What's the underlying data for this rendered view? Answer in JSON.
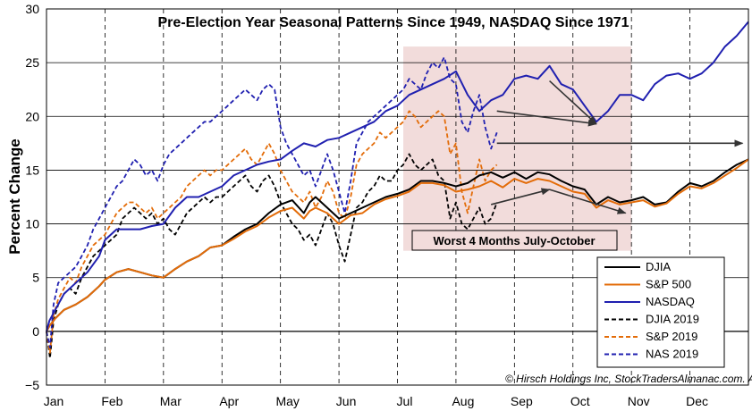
{
  "chart_data": {
    "type": "line",
    "title": "Pre-Election Year Seasonal Patterns Since 1949, NASDAQ Since 1971",
    "ylabel": "Percent Change",
    "xlabel": "",
    "ylim": [
      -5,
      30
    ],
    "yticks": [
      "−5",
      "0",
      "5",
      "10",
      "15",
      "20",
      "25",
      "30"
    ],
    "ytick_values": [
      -5,
      0,
      5,
      10,
      15,
      20,
      25,
      30
    ],
    "months": [
      "Jan",
      "Feb",
      "Mar",
      "Apr",
      "May",
      "Jun",
      "Jul",
      "Aug",
      "Sep",
      "Oct",
      "Nov",
      "Dec"
    ],
    "xlim": [
      0,
      12
    ],
    "grid": true,
    "legend_position": "bottom-right",
    "shaded_region": {
      "x_start": 6.1,
      "x_end": 10.0,
      "y_start": 7.5,
      "y_end": 26.5,
      "color": "#f2dcdb"
    },
    "annotation": {
      "text": "Worst 4 Months July-October",
      "x": 7.9,
      "y": 8.5
    },
    "copyright": "© Hirsch Holdings Inc, StockTradersAlmanac.com. All rights reserved.",
    "arrows": [
      {
        "from": [
          7.7,
          20.5
        ],
        "to": [
          9.4,
          19.3
        ]
      },
      {
        "from": [
          7.7,
          17.5
        ],
        "to": [
          11.9,
          17.5
        ]
      },
      {
        "from": [
          7.6,
          11.8
        ],
        "to": [
          8.6,
          13.2
        ]
      },
      {
        "from": [
          8.6,
          13.2
        ],
        "to": [
          9.9,
          11.0
        ]
      },
      {
        "from": [
          8.6,
          23.3
        ],
        "to": [
          8.5,
          23.0
        ]
      }
    ],
    "series": [
      {
        "name": "DJIA",
        "color": "#000000",
        "dash": false,
        "x": [
          0,
          0.05,
          0.15,
          0.3,
          0.5,
          0.7,
          0.9,
          1.0,
          1.2,
          1.4,
          1.6,
          1.8,
          2.0,
          2.2,
          2.4,
          2.6,
          2.8,
          3.0,
          3.2,
          3.4,
          3.6,
          3.8,
          4.0,
          4.2,
          4.4,
          4.5,
          4.6,
          4.8,
          5.0,
          5.2,
          5.4,
          5.6,
          5.8,
          6.0,
          6.2,
          6.4,
          6.6,
          6.8,
          7.0,
          7.2,
          7.4,
          7.6,
          7.8,
          8.0,
          8.2,
          8.4,
          8.6,
          8.8,
          9.0,
          9.2,
          9.4,
          9.6,
          9.8,
          10.0,
          10.2,
          10.4,
          10.6,
          10.8,
          11.0,
          11.2,
          11.4,
          11.6,
          11.8,
          12.0
        ],
        "y": [
          0,
          0.5,
          1.2,
          2.0,
          2.5,
          3.2,
          4.2,
          4.8,
          5.5,
          5.8,
          5.5,
          5.2,
          5.0,
          5.8,
          6.5,
          7.0,
          7.8,
          8.0,
          8.8,
          9.5,
          10.0,
          11.0,
          11.8,
          12.2,
          11.0,
          12.0,
          12.5,
          11.5,
          10.5,
          11.0,
          11.5,
          12.0,
          12.5,
          12.8,
          13.2,
          14.0,
          14.0,
          13.8,
          13.5,
          13.8,
          14.5,
          14.8,
          14.3,
          14.8,
          14.2,
          14.8,
          14.6,
          14.0,
          13.5,
          13.2,
          11.8,
          12.5,
          12.0,
          12.2,
          12.5,
          11.8,
          12.0,
          13.0,
          13.8,
          13.5,
          14.0,
          14.8,
          15.5,
          16.0
        ]
      },
      {
        "name": "S&P 500",
        "color": "#e36c09",
        "dash": false,
        "x": [
          0,
          0.05,
          0.15,
          0.3,
          0.5,
          0.7,
          0.9,
          1.0,
          1.2,
          1.4,
          1.6,
          1.8,
          2.0,
          2.2,
          2.4,
          2.6,
          2.8,
          3.0,
          3.2,
          3.4,
          3.6,
          3.8,
          4.0,
          4.2,
          4.4,
          4.5,
          4.6,
          4.8,
          5.0,
          5.2,
          5.4,
          5.6,
          5.8,
          6.0,
          6.2,
          6.4,
          6.6,
          6.8,
          7.0,
          7.2,
          7.4,
          7.6,
          7.8,
          8.0,
          8.2,
          8.4,
          8.6,
          8.8,
          9.0,
          9.2,
          9.4,
          9.6,
          9.8,
          10.0,
          10.2,
          10.4,
          10.6,
          10.8,
          11.0,
          11.2,
          11.4,
          11.6,
          11.8,
          12.0
        ],
        "y": [
          0,
          0.5,
          1.2,
          2.0,
          2.5,
          3.2,
          4.2,
          4.8,
          5.5,
          5.8,
          5.5,
          5.2,
          5.0,
          5.8,
          6.5,
          7.0,
          7.8,
          8.0,
          8.6,
          9.3,
          9.8,
          10.6,
          11.2,
          11.5,
          10.5,
          11.2,
          11.5,
          11.0,
          10.0,
          10.8,
          11.0,
          11.8,
          12.3,
          12.6,
          13.0,
          13.8,
          13.8,
          13.6,
          13.0,
          13.2,
          13.5,
          14.0,
          13.4,
          14.2,
          13.8,
          14.2,
          14.0,
          13.5,
          13.0,
          12.8,
          11.5,
          12.2,
          11.8,
          12.0,
          12.2,
          11.6,
          11.9,
          12.8,
          13.5,
          13.3,
          13.8,
          14.5,
          15.2,
          16.0
        ]
      },
      {
        "name": "NASDAQ",
        "color": "#2020b0",
        "dash": false,
        "x": [
          0,
          0.05,
          0.15,
          0.3,
          0.5,
          0.7,
          0.9,
          1.0,
          1.2,
          1.4,
          1.6,
          1.8,
          2.0,
          2.2,
          2.4,
          2.6,
          2.8,
          3.0,
          3.2,
          3.4,
          3.6,
          3.8,
          4.0,
          4.2,
          4.4,
          4.6,
          4.8,
          5.0,
          5.2,
          5.4,
          5.6,
          5.8,
          6.0,
          6.2,
          6.4,
          6.6,
          6.8,
          7.0,
          7.2,
          7.4,
          7.6,
          7.8,
          8.0,
          8.2,
          8.4,
          8.6,
          8.8,
          9.0,
          9.2,
          9.4,
          9.6,
          9.8,
          10.0,
          10.2,
          10.4,
          10.6,
          10.8,
          11.0,
          11.2,
          11.4,
          11.6,
          11.8,
          12.0
        ],
        "y": [
          0,
          1.0,
          2.0,
          3.5,
          4.5,
          5.5,
          7.0,
          8.5,
          9.5,
          9.5,
          9.5,
          9.8,
          10.0,
          11.5,
          12.5,
          12.5,
          13.0,
          13.5,
          14.5,
          15.0,
          15.5,
          15.8,
          16.0,
          16.8,
          17.5,
          17.2,
          17.8,
          18.0,
          18.5,
          19.0,
          19.5,
          20.5,
          21.0,
          22.0,
          22.5,
          23.0,
          23.5,
          24.2,
          22.0,
          20.5,
          21.5,
          22.0,
          23.5,
          23.8,
          23.5,
          24.7,
          23.0,
          22.5,
          21.0,
          19.5,
          20.5,
          22.0,
          22.0,
          21.5,
          23.0,
          23.8,
          24.0,
          23.5,
          24.0,
          25.0,
          26.5,
          27.5,
          28.8
        ]
      },
      {
        "name": "DJIA 2019",
        "color": "#000000",
        "dash": true,
        "x": [
          0,
          0.06,
          0.12,
          0.2,
          0.3,
          0.4,
          0.5,
          0.6,
          0.7,
          0.8,
          0.9,
          1.0,
          1.1,
          1.2,
          1.3,
          1.4,
          1.5,
          1.6,
          1.7,
          1.8,
          1.9,
          2.0,
          2.1,
          2.2,
          2.3,
          2.4,
          2.5,
          2.6,
          2.7,
          2.8,
          2.9,
          3.0,
          3.1,
          3.2,
          3.3,
          3.4,
          3.5,
          3.6,
          3.7,
          3.8,
          3.9,
          4.0,
          4.1,
          4.2,
          4.3,
          4.4,
          4.5,
          4.6,
          4.7,
          4.8,
          4.9,
          5.0,
          5.1,
          5.2,
          5.3,
          5.4,
          5.5,
          5.6,
          5.7,
          5.8,
          5.9,
          6.0,
          6.1,
          6.2,
          6.3,
          6.4,
          6.5,
          6.6,
          6.7,
          6.8,
          6.9,
          7.0,
          7.1,
          7.2,
          7.3,
          7.4,
          7.5,
          7.6,
          7.7
        ],
        "y": [
          0,
          -2.5,
          1.0,
          2.5,
          3.5,
          4.0,
          3.5,
          5.0,
          6.0,
          7.0,
          7.5,
          8.0,
          8.5,
          9.0,
          10.5,
          11.0,
          11.5,
          11.0,
          10.5,
          11.0,
          10.0,
          10.5,
          9.5,
          9.0,
          10.0,
          11.0,
          11.5,
          12.0,
          12.5,
          12.0,
          12.5,
          12.5,
          13.0,
          13.5,
          14.0,
          14.5,
          13.5,
          13.0,
          14.0,
          14.5,
          13.5,
          12.0,
          11.0,
          10.0,
          9.5,
          8.5,
          9.0,
          8.0,
          9.5,
          11.0,
          10.0,
          8.0,
          6.5,
          9.0,
          11.5,
          12.0,
          13.0,
          13.5,
          14.5,
          14.0,
          14.0,
          15.0,
          15.5,
          16.5,
          15.5,
          15.0,
          15.5,
          16.0,
          14.5,
          14.0,
          10.5,
          12.0,
          10.0,
          9.5,
          10.5,
          11.5,
          10.0,
          10.5,
          12.0
        ]
      },
      {
        "name": "S&P 2019",
        "color": "#e36c09",
        "dash": true,
        "x": [
          0,
          0.06,
          0.12,
          0.2,
          0.3,
          0.4,
          0.5,
          0.6,
          0.7,
          0.8,
          0.9,
          1.0,
          1.1,
          1.2,
          1.3,
          1.4,
          1.5,
          1.6,
          1.7,
          1.8,
          1.9,
          2.0,
          2.1,
          2.2,
          2.3,
          2.4,
          2.5,
          2.6,
          2.7,
          2.8,
          2.9,
          3.0,
          3.1,
          3.2,
          3.3,
          3.4,
          3.5,
          3.6,
          3.7,
          3.8,
          3.9,
          4.0,
          4.1,
          4.2,
          4.3,
          4.4,
          4.5,
          4.6,
          4.7,
          4.8,
          4.9,
          5.0,
          5.1,
          5.2,
          5.3,
          5.4,
          5.5,
          5.6,
          5.7,
          5.8,
          5.9,
          6.0,
          6.1,
          6.2,
          6.3,
          6.4,
          6.5,
          6.6,
          6.7,
          6.8,
          6.9,
          7.0,
          7.1,
          7.2,
          7.3,
          7.4,
          7.5,
          7.6,
          7.7
        ],
        "y": [
          0,
          -2.0,
          1.5,
          3.0,
          4.0,
          5.0,
          4.5,
          6.0,
          7.0,
          8.0,
          8.5,
          9.0,
          10.0,
          11.0,
          11.5,
          12.0,
          12.0,
          11.5,
          11.0,
          11.5,
          10.5,
          11.0,
          11.5,
          12.0,
          12.5,
          13.5,
          14.0,
          14.5,
          15.0,
          14.5,
          15.0,
          15.0,
          15.5,
          16.0,
          16.5,
          17.0,
          16.0,
          15.5,
          16.5,
          17.5,
          16.5,
          15.0,
          14.0,
          13.0,
          12.5,
          12.0,
          13.0,
          11.5,
          12.5,
          14.0,
          13.0,
          11.0,
          10.5,
          12.5,
          15.5,
          16.5,
          17.0,
          17.5,
          18.5,
          18.0,
          18.5,
          19.0,
          19.5,
          20.5,
          20.0,
          19.0,
          19.5,
          20.0,
          20.5,
          20.0,
          16.5,
          17.5,
          13.0,
          11.0,
          13.5,
          16.0,
          14.0,
          15.0,
          15.5
        ]
      },
      {
        "name": "NAS 2019",
        "color": "#2020b0",
        "dash": true,
        "x": [
          0,
          0.06,
          0.12,
          0.2,
          0.3,
          0.4,
          0.5,
          0.6,
          0.7,
          0.8,
          0.9,
          1.0,
          1.1,
          1.2,
          1.3,
          1.4,
          1.5,
          1.6,
          1.7,
          1.8,
          1.9,
          2.0,
          2.1,
          2.2,
          2.3,
          2.4,
          2.5,
          2.6,
          2.7,
          2.8,
          2.9,
          3.0,
          3.1,
          3.2,
          3.3,
          3.4,
          3.5,
          3.6,
          3.7,
          3.8,
          3.9,
          4.0,
          4.1,
          4.2,
          4.3,
          4.4,
          4.5,
          4.6,
          4.7,
          4.8,
          4.9,
          5.0,
          5.1,
          5.2,
          5.3,
          5.4,
          5.5,
          5.6,
          5.7,
          5.8,
          5.9,
          6.0,
          6.1,
          6.2,
          6.3,
          6.4,
          6.5,
          6.6,
          6.7,
          6.8,
          6.9,
          7.0,
          7.1,
          7.2,
          7.3,
          7.4,
          7.5,
          7.6,
          7.7
        ],
        "y": [
          0,
          -1.5,
          2.5,
          4.5,
          5.0,
          5.5,
          6.0,
          7.0,
          8.0,
          9.5,
          10.5,
          11.5,
          12.5,
          13.5,
          14.0,
          15.0,
          16.0,
          15.5,
          14.5,
          15.0,
          14.0,
          15.5,
          16.5,
          17.0,
          17.5,
          18.0,
          18.5,
          19.0,
          19.5,
          19.5,
          20.0,
          20.5,
          21.0,
          21.5,
          22.0,
          22.5,
          22.0,
          21.5,
          22.5,
          23.0,
          22.5,
          19.0,
          17.5,
          16.5,
          15.5,
          14.5,
          15.0,
          13.5,
          15.0,
          16.5,
          15.0,
          13.0,
          11.0,
          14.0,
          17.5,
          18.5,
          19.5,
          20.0,
          20.5,
          21.0,
          21.5,
          22.0,
          22.5,
          23.5,
          23.0,
          22.5,
          24.0,
          25.0,
          24.5,
          25.5,
          23.5,
          23.0,
          19.5,
          18.5,
          20.5,
          22.0,
          19.0,
          17.0,
          18.5
        ]
      }
    ]
  }
}
